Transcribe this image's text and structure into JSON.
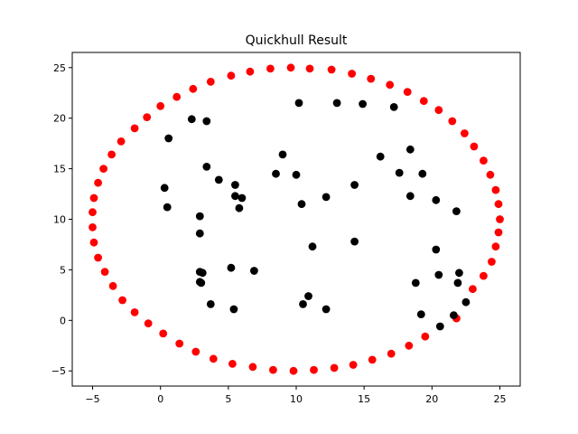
{
  "chart_data": {
    "type": "scatter",
    "title": "Quickhull Result",
    "xlabel": "",
    "ylabel": "",
    "xlim": [
      -6.5,
      26.5
    ],
    "ylim": [
      -6.5,
      26.5
    ],
    "xticks": [
      -5,
      0,
      5,
      10,
      15,
      20,
      25
    ],
    "yticks": [
      -5,
      0,
      5,
      10,
      15,
      20,
      25
    ],
    "xtick_labels": [
      "−5",
      "0",
      "5",
      "10",
      "15",
      "20",
      "25"
    ],
    "ytick_labels": [
      "−5",
      "0",
      "5",
      "10",
      "15",
      "20",
      "25"
    ],
    "grid": false,
    "legend": false,
    "series": [
      {
        "color": "#ff0000",
        "points": [
          [
            -5.0,
            10.7
          ],
          [
            -4.9,
            12.1
          ],
          [
            -4.6,
            13.6
          ],
          [
            -4.2,
            15.0
          ],
          [
            -3.6,
            16.4
          ],
          [
            -2.9,
            17.7
          ],
          [
            -1.9,
            19.0
          ],
          [
            -1.0,
            20.1
          ],
          [
            0.0,
            21.2
          ],
          [
            1.2,
            22.1
          ],
          [
            2.4,
            22.9
          ],
          [
            3.7,
            23.6
          ],
          [
            5.2,
            24.2
          ],
          [
            6.6,
            24.6
          ],
          [
            8.1,
            24.9
          ],
          [
            9.6,
            25.0
          ],
          [
            11.0,
            24.9
          ],
          [
            12.6,
            24.8
          ],
          [
            14.1,
            24.4
          ],
          [
            15.5,
            23.9
          ],
          [
            16.9,
            23.3
          ],
          [
            18.2,
            22.6
          ],
          [
            19.4,
            21.7
          ],
          [
            20.5,
            20.8
          ],
          [
            21.5,
            19.7
          ],
          [
            22.4,
            18.5
          ],
          [
            23.1,
            17.2
          ],
          [
            23.8,
            15.8
          ],
          [
            24.3,
            14.4
          ],
          [
            24.7,
            12.9
          ],
          [
            24.9,
            11.5
          ],
          [
            25.0,
            10.0
          ],
          [
            24.9,
            8.7
          ],
          [
            24.7,
            7.3
          ],
          [
            24.4,
            5.8
          ],
          [
            23.8,
            4.4
          ],
          [
            23.0,
            3.1
          ],
          [
            21.8,
            0.2
          ],
          [
            19.5,
            -1.6
          ],
          [
            18.3,
            -2.5
          ],
          [
            17.0,
            -3.3
          ],
          [
            15.6,
            -3.9
          ],
          [
            14.2,
            -4.4
          ],
          [
            12.8,
            -4.7
          ],
          [
            11.3,
            -4.9
          ],
          [
            9.8,
            -5.0
          ],
          [
            8.3,
            -4.9
          ],
          [
            6.8,
            -4.6
          ],
          [
            5.3,
            -4.3
          ],
          [
            3.9,
            -3.8
          ],
          [
            2.6,
            -3.1
          ],
          [
            1.4,
            -2.3
          ],
          [
            0.2,
            -1.3
          ],
          [
            -0.9,
            -0.3
          ],
          [
            -1.9,
            0.8
          ],
          [
            -2.8,
            2.0
          ],
          [
            -3.5,
            3.4
          ],
          [
            -4.1,
            4.8
          ],
          [
            -4.6,
            6.2
          ],
          [
            -4.9,
            7.7
          ],
          [
            -5.0,
            9.2
          ]
        ]
      },
      {
        "color": "#000000",
        "points": [
          [
            2.3,
            19.9
          ],
          [
            3.4,
            19.7
          ],
          [
            10.2,
            21.5
          ],
          [
            13.0,
            21.5
          ],
          [
            14.9,
            21.4
          ],
          [
            17.2,
            21.1
          ],
          [
            0.6,
            18.0
          ],
          [
            9.0,
            16.4
          ],
          [
            16.2,
            16.2
          ],
          [
            18.4,
            16.9
          ],
          [
            3.4,
            15.2
          ],
          [
            17.6,
            14.6
          ],
          [
            19.3,
            14.5
          ],
          [
            8.5,
            14.5
          ],
          [
            10.0,
            14.4
          ],
          [
            4.3,
            13.9
          ],
          [
            5.5,
            13.4
          ],
          [
            14.3,
            13.4
          ],
          [
            0.3,
            13.1
          ],
          [
            5.5,
            12.3
          ],
          [
            6.0,
            12.1
          ],
          [
            12.2,
            12.2
          ],
          [
            18.4,
            12.3
          ],
          [
            20.3,
            11.9
          ],
          [
            0.5,
            11.2
          ],
          [
            5.8,
            11.1
          ],
          [
            10.4,
            11.5
          ],
          [
            21.8,
            10.8
          ],
          [
            2.9,
            10.3
          ],
          [
            2.9,
            8.6
          ],
          [
            14.3,
            7.8
          ],
          [
            11.2,
            7.3
          ],
          [
            20.3,
            7.0
          ],
          [
            2.9,
            4.8
          ],
          [
            3.1,
            4.7
          ],
          [
            5.2,
            5.2
          ],
          [
            6.9,
            4.9
          ],
          [
            20.5,
            4.5
          ],
          [
            22.0,
            4.7
          ],
          [
            3.0,
            3.7
          ],
          [
            2.9,
            3.8
          ],
          [
            18.8,
            3.7
          ],
          [
            21.9,
            3.7
          ],
          [
            10.9,
            2.4
          ],
          [
            3.7,
            1.6
          ],
          [
            10.5,
            1.6
          ],
          [
            5.4,
            1.1
          ],
          [
            12.2,
            1.1
          ],
          [
            22.5,
            1.8
          ],
          [
            19.2,
            0.6
          ],
          [
            21.6,
            0.5
          ],
          [
            20.6,
            -0.6
          ]
        ]
      }
    ]
  }
}
